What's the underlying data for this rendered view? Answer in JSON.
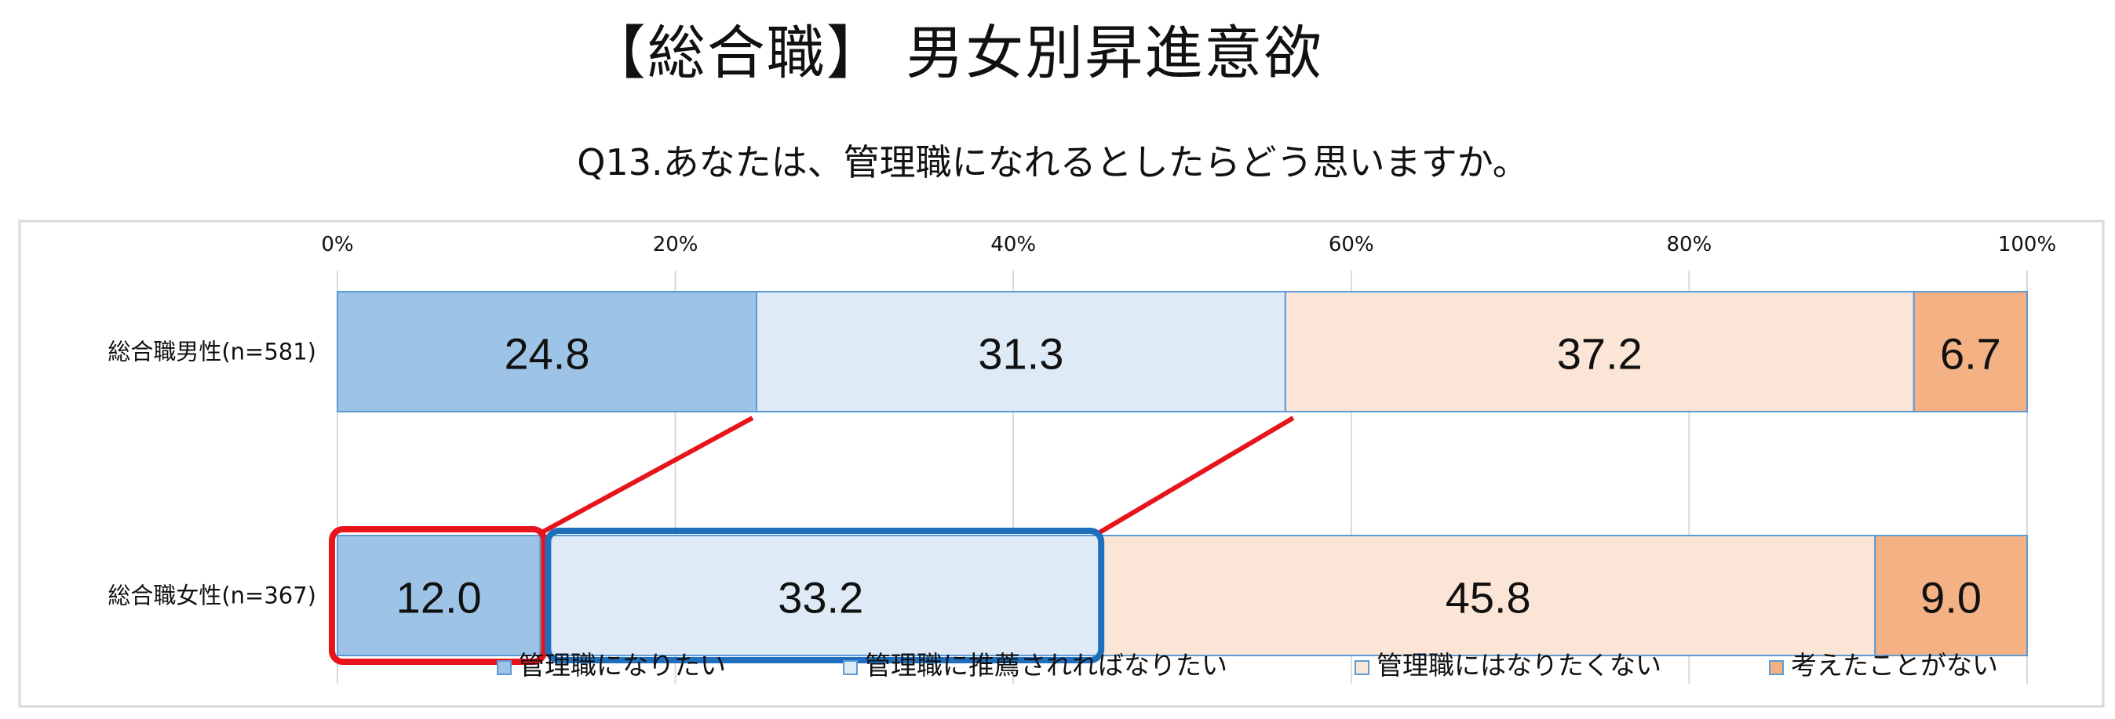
{
  "title": "【総合職】 男女別昇進意欲",
  "subtitle": "Q13.あなたは、管理職になれるとしたらどう思いますか。",
  "chart_data": {
    "type": "bar",
    "orientation": "horizontal",
    "stacked": "100%",
    "title": "【総合職】 男女別昇進意欲",
    "subtitle": "Q13.あなたは、管理職になれるとしたらどう思いますか。",
    "categories": [
      "総合職男性(n=581)",
      "総合職女性(n=367)"
    ],
    "series": [
      {
        "name": "管理職になりたい",
        "values": [
          24.8,
          12.0
        ],
        "color": "#9dc3e6",
        "labels": [
          "24.8",
          "12.0"
        ]
      },
      {
        "name": "管理職に推薦されればなりたい",
        "values": [
          31.3,
          33.2
        ],
        "color": "#deebf7",
        "labels": [
          "31.3",
          "33.2"
        ]
      },
      {
        "name": "管理職にはなりたくない",
        "values": [
          37.2,
          45.8
        ],
        "color": "#fbe5d6",
        "labels": [
          "37.2",
          "45.8"
        ]
      },
      {
        "name": "考えたことがない",
        "values": [
          6.7,
          9.0
        ],
        "color": "#f4b183",
        "labels": [
          "6.7",
          "9.0"
        ]
      }
    ],
    "x_tick_labels": [
      "0%",
      "20%",
      "40%",
      "60%",
      "80%",
      "100%"
    ],
    "xlim": [
      0,
      100
    ],
    "x_axis_position": "top",
    "grid": true,
    "legend_position": "bottom",
    "annotations": {
      "highlight_color_red": "#e8141c",
      "highlight_color_blue": "#1f6fbd",
      "highlight_red_series": 0,
      "highlight_blue_series": 1,
      "highlighted_category": 1
    }
  }
}
